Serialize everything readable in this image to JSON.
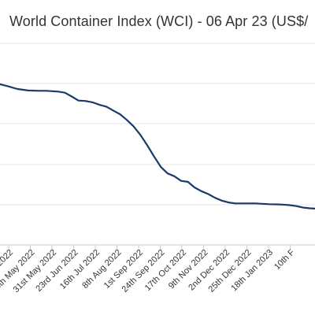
{
  "chart_data": {
    "type": "line",
    "title": "World Container Index (WCI) - 06 Apr 23 (US$/",
    "x_tick_labels": [
      "15th Apr 2022",
      "8th May 2022",
      "31st May 2022",
      "23rd Jun 2022",
      "16th Jul 2022",
      "8th Aug 2022",
      "1st Sep 2022",
      "24th Sep 2022",
      "17th Oct 2022",
      "9th Nov 2022",
      "2nd Dec 2022",
      "25th Dec 2022",
      "18th Jan 2023",
      "10th F"
    ],
    "grid": true,
    "series": [
      {
        "color": "#1a3a6b",
        "points": [
          [
            "2022-04-02",
            8950
          ],
          [
            "2022-04-10",
            8850
          ],
          [
            "2022-04-20",
            8700
          ],
          [
            "2022-05-01",
            8620
          ],
          [
            "2022-05-12",
            8600
          ],
          [
            "2022-05-20",
            8600
          ],
          [
            "2022-06-01",
            8560
          ],
          [
            "2022-06-08",
            8500
          ],
          [
            "2022-06-15",
            8300
          ],
          [
            "2022-06-22",
            8080
          ],
          [
            "2022-06-29",
            8060
          ],
          [
            "2022-07-07",
            7980
          ],
          [
            "2022-07-14",
            7850
          ],
          [
            "2022-07-21",
            7750
          ],
          [
            "2022-07-28",
            7550
          ],
          [
            "2022-08-04",
            7350
          ],
          [
            "2022-08-11",
            7050
          ],
          [
            "2022-08-18",
            6700
          ],
          [
            "2022-08-25",
            6250
          ],
          [
            "2022-09-01",
            5700
          ],
          [
            "2022-09-08",
            5100
          ],
          [
            "2022-09-15",
            4550
          ],
          [
            "2022-09-22",
            4200
          ],
          [
            "2022-09-29",
            4050
          ],
          [
            "2022-10-06",
            3800
          ],
          [
            "2022-10-13",
            3750
          ],
          [
            "2022-10-20",
            3450
          ],
          [
            "2022-10-27",
            3250
          ],
          [
            "2022-11-03",
            3100
          ],
          [
            "2022-11-10",
            2900
          ],
          [
            "2022-11-17",
            2750
          ],
          [
            "2022-11-24",
            2650
          ],
          [
            "2022-12-01",
            2600
          ],
          [
            "2022-12-08",
            2600
          ],
          [
            "2022-12-15",
            2600
          ],
          [
            "2022-12-22",
            2600
          ],
          [
            "2022-12-29",
            2580
          ],
          [
            "2023-01-05",
            2560
          ],
          [
            "2023-01-12",
            2550
          ],
          [
            "2023-01-19",
            2540
          ],
          [
            "2023-01-26",
            2510
          ],
          [
            "2023-02-02",
            2460
          ],
          [
            "2023-02-09",
            2380
          ],
          [
            "2023-02-16",
            2340
          ],
          [
            "2023-02-23",
            2320
          ]
        ]
      }
    ]
  }
}
